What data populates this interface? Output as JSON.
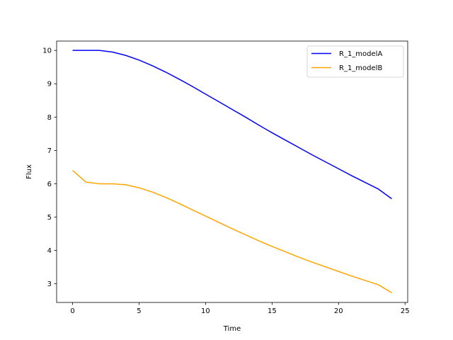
{
  "chart_data": {
    "type": "line",
    "title": "",
    "xlabel": "Time",
    "ylabel": "Flux",
    "xlim": [
      -1.2,
      25.2
    ],
    "ylim": [
      2.44,
      10.28
    ],
    "xticks": [
      0,
      5,
      10,
      15,
      20,
      25
    ],
    "yticks": [
      3,
      4,
      5,
      6,
      7,
      8,
      9,
      10
    ],
    "grid": false,
    "legend_position": "top-right",
    "x": [
      0,
      1,
      2,
      3,
      4,
      5,
      6,
      7,
      8,
      9,
      10,
      11,
      12,
      13,
      14,
      15,
      16,
      17,
      18,
      19,
      20,
      21,
      22,
      23,
      24
    ],
    "series": [
      {
        "name": "R_1_modelA",
        "color": "#0000ff",
        "values": [
          10.0,
          10.0,
          10.0,
          9.95,
          9.85,
          9.71,
          9.54,
          9.35,
          9.14,
          8.92,
          8.69,
          8.46,
          8.23,
          8.0,
          7.76,
          7.53,
          7.31,
          7.09,
          6.87,
          6.66,
          6.45,
          6.24,
          6.04,
          5.84,
          5.55
        ]
      },
      {
        "name": "R_1_modelB",
        "color": "#ffa500",
        "values": [
          6.4,
          6.05,
          6.0,
          6.0,
          5.97,
          5.88,
          5.75,
          5.59,
          5.41,
          5.22,
          5.03,
          4.84,
          4.65,
          4.47,
          4.29,
          4.12,
          3.96,
          3.8,
          3.65,
          3.51,
          3.37,
          3.23,
          3.1,
          2.97,
          2.73
        ]
      }
    ]
  }
}
